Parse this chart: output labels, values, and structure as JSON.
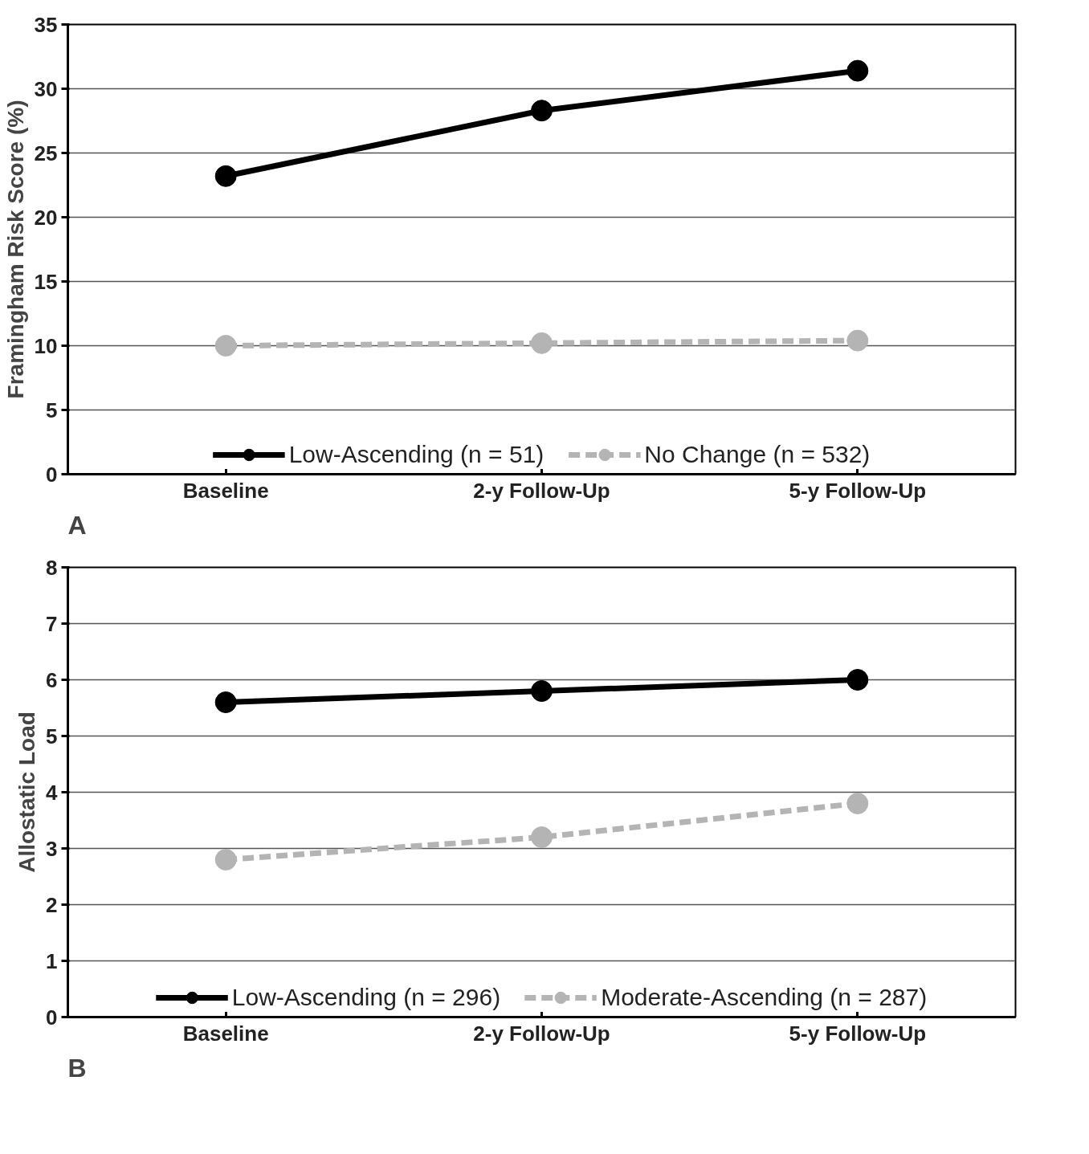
{
  "chart_data": [
    {
      "type": "line",
      "ylabel": "Framingham Risk Score (%)",
      "categories": [
        "Baseline",
        "2-y Follow-Up",
        "5-y Follow-Up"
      ],
      "ylim": [
        0,
        35
      ],
      "yticks": [
        0,
        5,
        10,
        15,
        20,
        25,
        30,
        35
      ],
      "grid": "y",
      "legend": "bottom",
      "marker": "circle",
      "annotations": [
        "A"
      ],
      "series": [
        {
          "name": "Low-Ascending (n = 51)",
          "color": "#000000",
          "line_style": "solid",
          "values": [
            23.2,
            28.3,
            31.4
          ]
        },
        {
          "name": "No Change (n = 532)",
          "color": "#b4b4b4",
          "line_style": "dashed",
          "values": [
            10.0,
            10.2,
            10.4
          ]
        }
      ]
    },
    {
      "type": "line",
      "ylabel": "Allostatic Load",
      "categories": [
        "Baseline",
        "2-y Follow-Up",
        "5-y Follow-Up"
      ],
      "ylim": [
        0,
        8
      ],
      "yticks": [
        0,
        1,
        2,
        3,
        4,
        5,
        6,
        7,
        8
      ],
      "grid": "y",
      "legend": "bottom",
      "marker": "circle",
      "annotations": [
        "B"
      ],
      "series": [
        {
          "name": "Low-Ascending (n = 296)",
          "color": "#000000",
          "line_style": "solid",
          "values": [
            5.6,
            5.8,
            6.0
          ]
        },
        {
          "name": "Moderate-Ascending (n = 287)",
          "color": "#b4b4b4",
          "line_style": "dashed",
          "values": [
            2.8,
            3.2,
            3.8
          ]
        }
      ]
    }
  ]
}
